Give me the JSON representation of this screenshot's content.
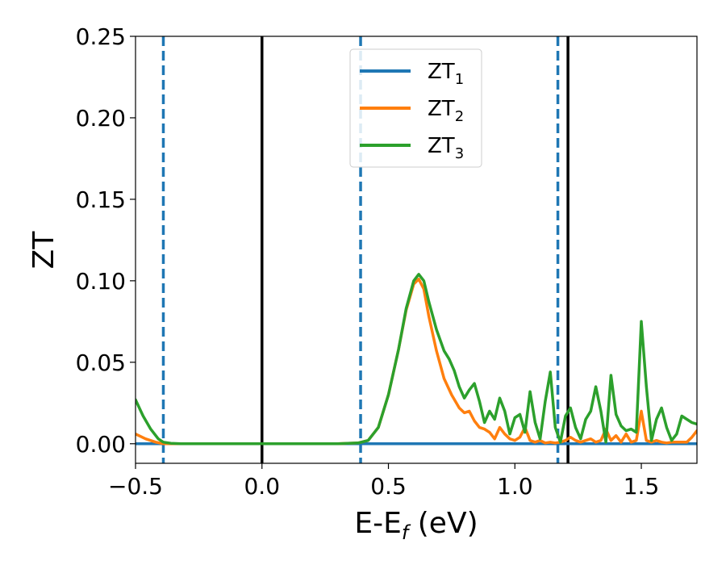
{
  "chart_data": {
    "type": "line",
    "xlabel": "E-E",
    "xlabel_sub": "f",
    "xlabel_unit": " (eV)",
    "ylabel": "ZT",
    "xlim": [
      -0.5,
      1.72
    ],
    "ylim": [
      -0.012,
      0.25
    ],
    "xticks": [
      -0.5,
      0.0,
      0.5,
      1.0,
      1.5
    ],
    "xtick_labels": [
      "−0.5",
      "0.0",
      "0.5",
      "1.0",
      "1.5"
    ],
    "yticks": [
      0.0,
      0.05,
      0.1,
      0.15,
      0.2,
      0.25
    ],
    "ytick_labels": [
      "0.00",
      "0.05",
      "0.10",
      "0.15",
      "0.20",
      "0.25"
    ],
    "grid": false,
    "legend_position": "top-center",
    "vertical_lines": [
      {
        "x": -0.39,
        "style": "dashed",
        "color": "#1f77b4"
      },
      {
        "x": 0.0,
        "style": "solid",
        "color": "#000000"
      },
      {
        "x": 0.39,
        "style": "dashed",
        "color": "#1f77b4"
      },
      {
        "x": 1.17,
        "style": "dashed",
        "color": "#1f77b4"
      },
      {
        "x": 1.21,
        "style": "solid",
        "color": "#000000"
      }
    ],
    "series": [
      {
        "name": "ZT",
        "name_sub": "1",
        "color": "#1f77b4",
        "x": [
          -0.5,
          1.72
        ],
        "y": [
          0.0,
          0.0
        ]
      },
      {
        "name": "ZT",
        "name_sub": "2",
        "color": "#ff7f0e",
        "x": [
          -0.5,
          -0.46,
          -0.42,
          -0.39,
          -0.35,
          -0.3,
          0.0,
          0.3,
          0.38,
          0.42,
          0.46,
          0.5,
          0.54,
          0.57,
          0.6,
          0.62,
          0.64,
          0.66,
          0.69,
          0.72,
          0.75,
          0.78,
          0.8,
          0.82,
          0.84,
          0.86,
          0.88,
          0.9,
          0.92,
          0.94,
          0.96,
          0.98,
          1.0,
          1.02,
          1.04,
          1.06,
          1.08,
          1.1,
          1.12,
          1.14,
          1.16,
          1.18,
          1.2,
          1.22,
          1.24,
          1.26,
          1.28,
          1.3,
          1.32,
          1.34,
          1.36,
          1.38,
          1.4,
          1.42,
          1.44,
          1.46,
          1.48,
          1.5,
          1.52,
          1.54,
          1.56,
          1.58,
          1.6,
          1.62,
          1.64,
          1.66,
          1.68,
          1.7,
          1.72
        ],
        "y": [
          0.006,
          0.003,
          0.001,
          0.0,
          0.0,
          0.0,
          0.0,
          0.0,
          0.0005,
          0.002,
          0.01,
          0.03,
          0.058,
          0.082,
          0.098,
          0.101,
          0.095,
          0.078,
          0.057,
          0.04,
          0.03,
          0.022,
          0.019,
          0.02,
          0.014,
          0.01,
          0.009,
          0.007,
          0.003,
          0.01,
          0.006,
          0.003,
          0.002,
          0.004,
          0.01,
          0.002,
          0.001,
          0.002,
          0.0005,
          0.001,
          0.0005,
          0.001,
          0.002,
          0.004,
          0.002,
          0.001,
          0.002,
          0.003,
          0.001,
          0.002,
          0.009,
          0.002,
          0.005,
          0.001,
          0.006,
          0.001,
          0.002,
          0.02,
          0.002,
          0.001,
          0.002,
          0.001,
          0.0005,
          0.001,
          0.001,
          0.001,
          0.001,
          0.004,
          0.008
        ]
      },
      {
        "name": "ZT",
        "name_sub": "3",
        "color": "#2ca02c",
        "x": [
          -0.5,
          -0.47,
          -0.44,
          -0.41,
          -0.39,
          -0.36,
          -0.32,
          -0.25,
          0.0,
          0.3,
          0.38,
          0.42,
          0.46,
          0.5,
          0.54,
          0.57,
          0.6,
          0.62,
          0.64,
          0.66,
          0.69,
          0.72,
          0.74,
          0.76,
          0.78,
          0.8,
          0.82,
          0.84,
          0.86,
          0.88,
          0.9,
          0.92,
          0.94,
          0.96,
          0.98,
          1.0,
          1.02,
          1.04,
          1.06,
          1.08,
          1.1,
          1.12,
          1.14,
          1.16,
          1.18,
          1.2,
          1.22,
          1.24,
          1.26,
          1.28,
          1.3,
          1.32,
          1.34,
          1.36,
          1.38,
          1.4,
          1.42,
          1.44,
          1.46,
          1.48,
          1.5,
          1.52,
          1.54,
          1.56,
          1.58,
          1.6,
          1.62,
          1.64,
          1.66,
          1.68,
          1.7,
          1.72
        ],
        "y": [
          0.027,
          0.017,
          0.009,
          0.003,
          0.001,
          0.0003,
          0.0,
          0.0,
          0.0,
          0.0,
          0.0005,
          0.002,
          0.01,
          0.03,
          0.058,
          0.083,
          0.1,
          0.104,
          0.1,
          0.087,
          0.07,
          0.057,
          0.052,
          0.045,
          0.035,
          0.028,
          0.033,
          0.037,
          0.026,
          0.013,
          0.02,
          0.015,
          0.028,
          0.02,
          0.006,
          0.016,
          0.018,
          0.007,
          0.032,
          0.013,
          0.003,
          0.026,
          0.044,
          0.01,
          0.001,
          0.017,
          0.022,
          0.01,
          0.003,
          0.015,
          0.02,
          0.035,
          0.02,
          0.001,
          0.042,
          0.018,
          0.011,
          0.008,
          0.009,
          0.007,
          0.075,
          0.035,
          0.002,
          0.015,
          0.022,
          0.01,
          0.002,
          0.006,
          0.017,
          0.015,
          0.013,
          0.012
        ]
      }
    ]
  }
}
